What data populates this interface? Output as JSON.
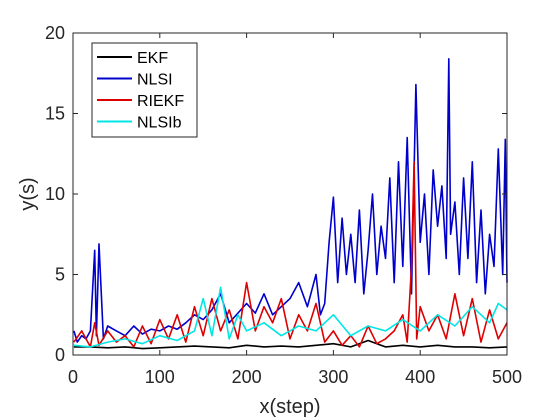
{
  "chart_data": {
    "type": "line",
    "xlabel": "x(step)",
    "ylabel": "y(s)",
    "xlim": [
      0,
      500
    ],
    "ylim": [
      0,
      20
    ],
    "xticks": [
      0,
      100,
      200,
      300,
      400,
      500
    ],
    "yticks": [
      0,
      5,
      10,
      15,
      20
    ],
    "grid": false,
    "legend_position": "top-left",
    "series": [
      {
        "name": "EKF",
        "color": "#000000",
        "x": [
          1,
          20,
          40,
          60,
          80,
          100,
          120,
          140,
          160,
          180,
          200,
          220,
          240,
          260,
          280,
          300,
          320,
          340,
          360,
          380,
          400,
          420,
          440,
          460,
          480,
          500
        ],
        "y": [
          0.5,
          0.5,
          0.45,
          0.5,
          0.4,
          0.45,
          0.5,
          0.55,
          0.5,
          0.45,
          0.6,
          0.5,
          0.55,
          0.5,
          0.6,
          0.7,
          0.5,
          0.9,
          0.5,
          0.6,
          0.5,
          0.6,
          0.5,
          0.5,
          0.45,
          0.5
        ]
      },
      {
        "name": "NLSI",
        "color": "#0000cc",
        "x": [
          1,
          5,
          10,
          15,
          20,
          25,
          27,
          30,
          35,
          40,
          50,
          60,
          70,
          80,
          90,
          100,
          110,
          120,
          130,
          140,
          150,
          160,
          170,
          180,
          190,
          200,
          210,
          220,
          230,
          240,
          250,
          260,
          270,
          280,
          285,
          290,
          295,
          300,
          305,
          310,
          315,
          320,
          325,
          330,
          335,
          340,
          345,
          350,
          355,
          360,
          365,
          370,
          375,
          380,
          385,
          390,
          395,
          400,
          405,
          410,
          415,
          420,
          425,
          430,
          433,
          435,
          440,
          445,
          450,
          455,
          460,
          465,
          470,
          475,
          480,
          485,
          490,
          495,
          498,
          500
        ],
        "y": [
          1.5,
          0.8,
          1.2,
          1.0,
          1.5,
          6.5,
          1.2,
          6.9,
          1.0,
          1.8,
          1.5,
          1.2,
          1.8,
          1.3,
          1.6,
          1.5,
          1.8,
          1.6,
          2.0,
          2.5,
          2.2,
          2.8,
          3.8,
          2.0,
          2.6,
          3.2,
          2.6,
          3.8,
          2.5,
          3.0,
          3.5,
          4.5,
          3.0,
          5.0,
          2.5,
          3.2,
          7.0,
          9.8,
          4.5,
          8.5,
          5.0,
          7.5,
          4.5,
          9.0,
          3.8,
          6.5,
          10.0,
          5.0,
          8.0,
          6.0,
          11.0,
          4.5,
          12.0,
          5.5,
          13.5,
          3.8,
          16.8,
          7.0,
          10.0,
          5.0,
          11.5,
          8.0,
          10.5,
          6.0,
          18.4,
          7.5,
          9.5,
          5.0,
          11.0,
          6.0,
          12.0,
          4.5,
          9.0,
          3.8,
          7.5,
          5.5,
          12.8,
          5.0,
          13.4,
          4.5
        ]
      },
      {
        "name": "RIEKF",
        "color": "#dd0000",
        "x": [
          1,
          10,
          20,
          25,
          30,
          40,
          50,
          60,
          70,
          80,
          90,
          100,
          110,
          120,
          130,
          140,
          150,
          160,
          170,
          180,
          190,
          200,
          210,
          220,
          230,
          240,
          250,
          260,
          270,
          280,
          290,
          300,
          310,
          320,
          330,
          340,
          350,
          360,
          370,
          380,
          385,
          390,
          393,
          396,
          400,
          410,
          420,
          430,
          440,
          450,
          460,
          470,
          480,
          490,
          500
        ],
        "y": [
          0.8,
          1.5,
          0.5,
          2.0,
          0.6,
          1.5,
          0.8,
          1.2,
          0.5,
          1.8,
          0.7,
          2.2,
          1.0,
          2.5,
          0.8,
          3.0,
          1.2,
          3.5,
          1.5,
          2.8,
          1.0,
          4.5,
          1.5,
          3.0,
          2.0,
          3.5,
          1.0,
          2.5,
          1.5,
          3.2,
          0.8,
          1.5,
          0.6,
          1.2,
          0.5,
          1.8,
          0.7,
          1.0,
          1.5,
          2.5,
          0.8,
          5.5,
          12.0,
          1.0,
          3.0,
          1.5,
          2.5,
          1.0,
          3.8,
          1.2,
          3.5,
          0.8,
          2.8,
          1.0,
          2.0
        ]
      },
      {
        "name": "NLSIb",
        "color": "#00e6e6",
        "x": [
          1,
          20,
          40,
          60,
          80,
          100,
          120,
          140,
          150,
          160,
          170,
          180,
          190,
          200,
          220,
          240,
          260,
          280,
          300,
          320,
          340,
          360,
          380,
          400,
          420,
          440,
          460,
          480,
          490,
          500
        ],
        "y": [
          0.6,
          0.5,
          0.8,
          1.0,
          0.7,
          1.2,
          0.9,
          1.5,
          3.5,
          1.2,
          4.2,
          1.0,
          2.5,
          1.5,
          2.0,
          1.2,
          1.8,
          1.5,
          2.5,
          1.2,
          1.8,
          1.5,
          2.2,
          1.5,
          2.5,
          1.8,
          3.0,
          2.0,
          3.2,
          2.8
        ]
      }
    ]
  }
}
